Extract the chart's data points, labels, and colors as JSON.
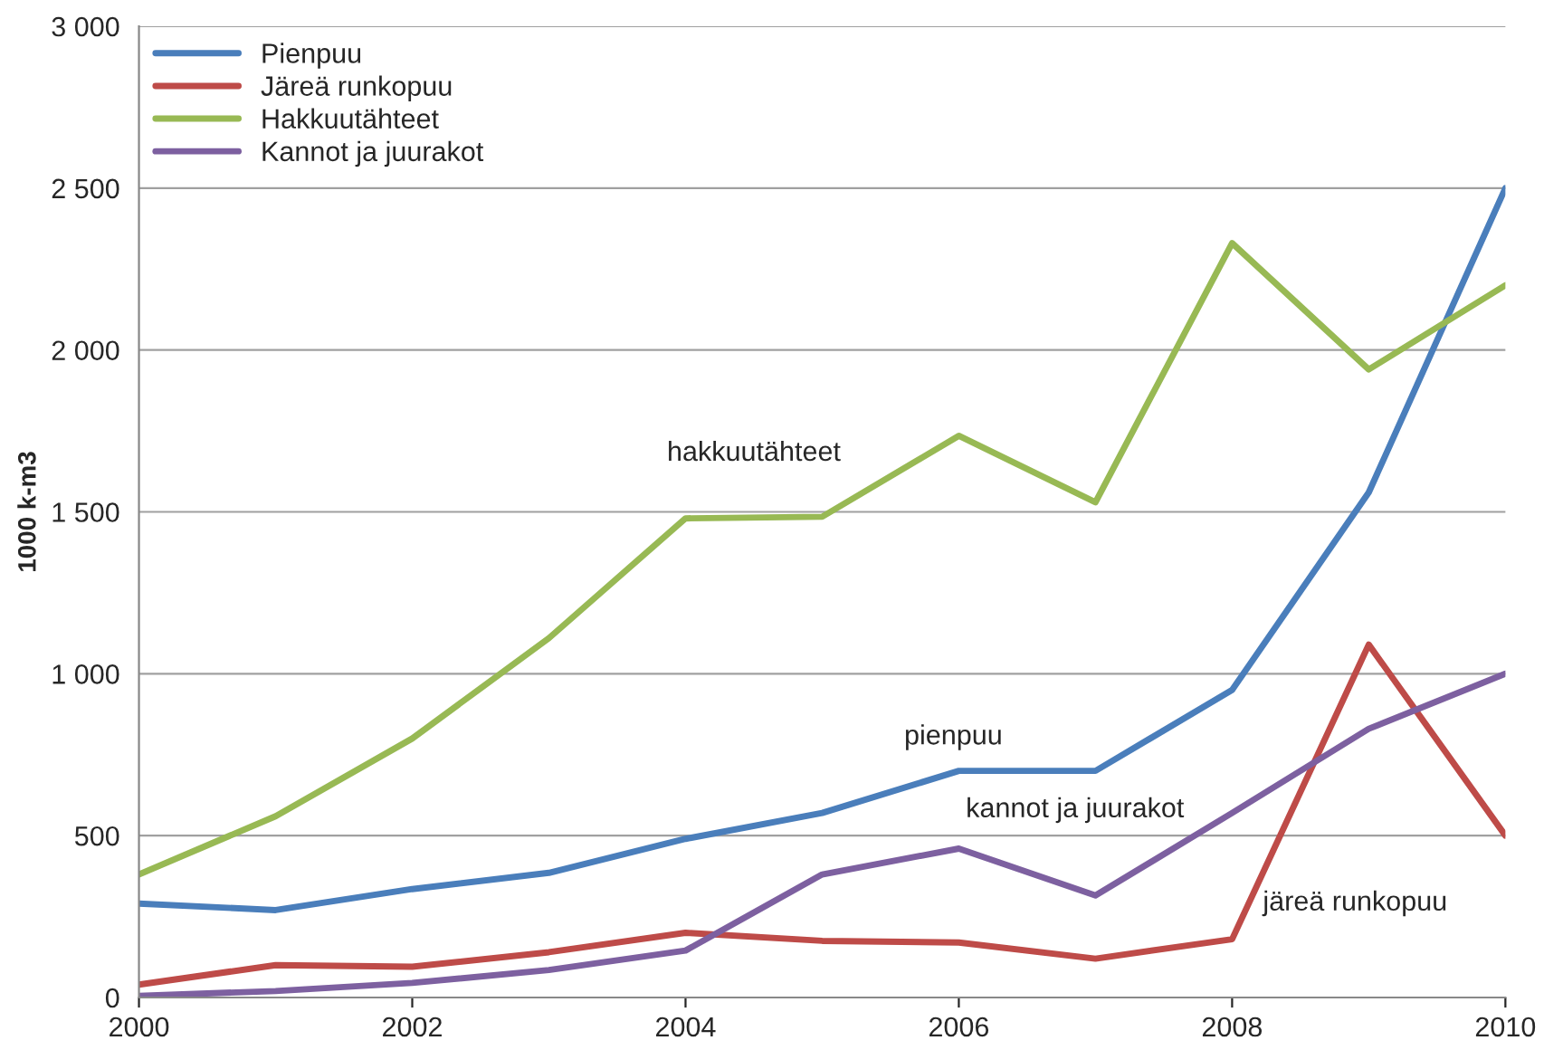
{
  "chart_data": {
    "type": "line",
    "ylabel": "1000 k-m3",
    "x": [
      2000,
      2001,
      2002,
      2003,
      2004,
      2005,
      2006,
      2007,
      2008,
      2009,
      2010
    ],
    "series": [
      {
        "name": "Pienpuu",
        "color": "#4a7ebb",
        "values": [
          290,
          270,
          335,
          385,
          490,
          570,
          700,
          700,
          950,
          1560,
          2500
        ]
      },
      {
        "name": "Järeä runkopuu",
        "color": "#be4b48",
        "values": [
          40,
          100,
          95,
          140,
          200,
          175,
          170,
          120,
          180,
          1090,
          500
        ]
      },
      {
        "name": "Hakkuutähteet",
        "color": "#98b954",
        "values": [
          380,
          560,
          800,
          1110,
          1480,
          1485,
          1735,
          1530,
          2330,
          1940,
          2200
        ]
      },
      {
        "name": "Kannot ja juurakot",
        "color": "#7d60a0",
        "values": [
          5,
          20,
          45,
          85,
          145,
          380,
          460,
          315,
          570,
          830,
          1000
        ]
      }
    ],
    "xlim": [
      2000,
      2010
    ],
    "xticks": [
      2000,
      2002,
      2004,
      2006,
      2008,
      2010
    ],
    "ylim": [
      0,
      3000
    ],
    "yticks": [
      0,
      {
        "value": 500,
        "label": "500"
      },
      {
        "value": 1000,
        "label": "1 000"
      },
      {
        "value": 1500,
        "label": "1 500"
      },
      {
        "value": 2000,
        "label": "2 000"
      },
      {
        "value": 2500,
        "label": "2 500"
      },
      {
        "value": 3000,
        "label": "3 000"
      }
    ],
    "grid": "y",
    "legend": "top left",
    "marker": "none",
    "line_style": "solid",
    "annotations": [
      "hakkuutähteet",
      "pienpuu",
      "kannot ja juurakot",
      "järeä runkopuu"
    ]
  }
}
